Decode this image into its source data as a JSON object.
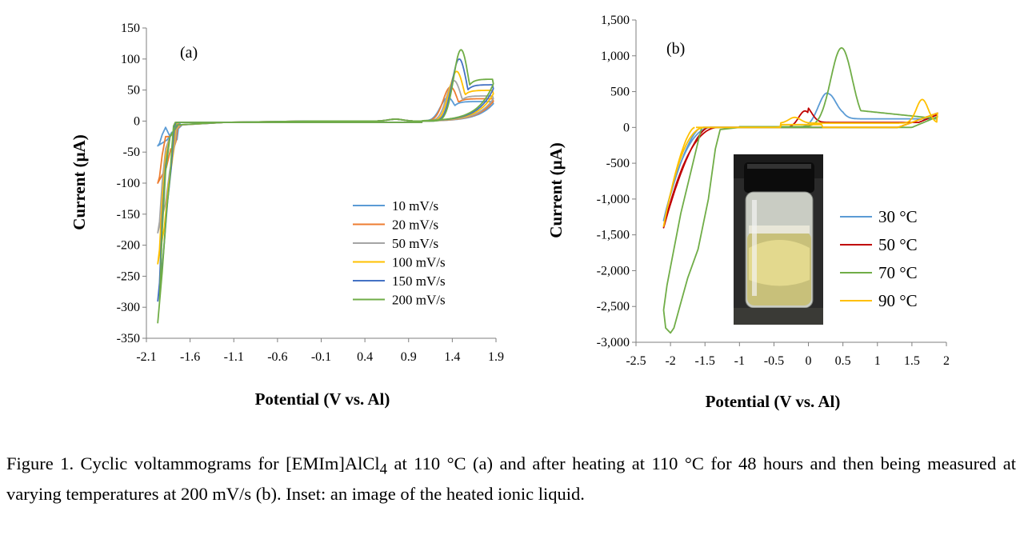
{
  "chart_data": [
    {
      "panel_label": "(a)",
      "type": "line",
      "xlabel": "Potential  (V vs. Al)",
      "ylabel": "Current  (μA)",
      "xlim": [
        -2.1,
        1.9
      ],
      "ylim": [
        -350,
        150
      ],
      "xticks": [
        "-2.1",
        "-1.6",
        "-1.1",
        "-0.6",
        "-0.1",
        "0.4",
        "0.9",
        "1.4",
        "1.9"
      ],
      "yticks": [
        "-350",
        "-300",
        "-250",
        "-200",
        "-150",
        "-100",
        "-50",
        "0",
        "50",
        "100",
        "150"
      ],
      "legend_position": "bottom-right",
      "series": [
        {
          "name": "10 mV/s",
          "color": "#5B9BD5",
          "peak_ox": 38,
          "peak_ox_v": 1.35,
          "min_red": -40,
          "end_ox": 35
        },
        {
          "name": "20 mV/s",
          "color": "#ED7D31",
          "peak_ox": 55,
          "peak_ox_v": 1.38,
          "min_red": -100,
          "end_ox": 40
        },
        {
          "name": "50 mV/s",
          "color": "#A5A5A5",
          "peak_ox": 65,
          "peak_ox_v": 1.42,
          "min_red": -180,
          "end_ox": 45
        },
        {
          "name": "100 mV/s",
          "color": "#FFC000",
          "peak_ox": 80,
          "peak_ox_v": 1.45,
          "min_red": -230,
          "end_ox": 55
        },
        {
          "name": "150 mV/s",
          "color": "#4472C4",
          "peak_ox": 100,
          "peak_ox_v": 1.48,
          "min_red": -290,
          "end_ox": 65
        },
        {
          "name": "200 mV/s",
          "color": "#70AD47",
          "peak_ox": 115,
          "peak_ox_v": 1.5,
          "min_red": -325,
          "end_ox": 75
        }
      ]
    },
    {
      "panel_label": "(b)",
      "type": "line",
      "xlabel": "Potential  (V vs. Al)",
      "ylabel": "Current  (μA)",
      "xlim": [
        -2.5,
        2
      ],
      "ylim": [
        -3000,
        1500
      ],
      "xticks": [
        "-2.5",
        "-2",
        "-1.5",
        "-1",
        "-0.5",
        "0",
        "0.5",
        "1",
        "1.5",
        "2"
      ],
      "yticks": [
        "-3,000",
        "-2,500",
        "-2,000",
        "-1,500",
        "-1,000",
        "-500",
        "0",
        "500",
        "1,000",
        "1,500"
      ],
      "legend_position": "right",
      "series": [
        {
          "name": "30 °C",
          "color": "#5B9BD5",
          "min_red": -1300,
          "peak_ox": 480,
          "peak_ox_v": 0.27
        },
        {
          "name": "50 °C",
          "color": "#C00000",
          "min_red": -1400,
          "peak_ox": 230,
          "peak_ox_v": -0.05
        },
        {
          "name": "70 °C",
          "color": "#70AD47",
          "min_red": -2870,
          "peak_ox": 1100,
          "peak_ox_v": 0.48
        },
        {
          "name": "90 °C",
          "color": "#FFC000",
          "min_red": -1380,
          "peak_ox": 330,
          "peak_ox_v": 1.65
        }
      ]
    }
  ],
  "caption": {
    "text_before_sub": "Figure 1. Cyclic voltammograms for [EMIm]AlCl",
    "sub": "4",
    "text_after_sub": " at 110 °C (a) and after heating at 110 °C for 48 hours and then being measured at varying temperatures at 200 mV/s (b). Inset: an image of the heated ionic liquid."
  }
}
